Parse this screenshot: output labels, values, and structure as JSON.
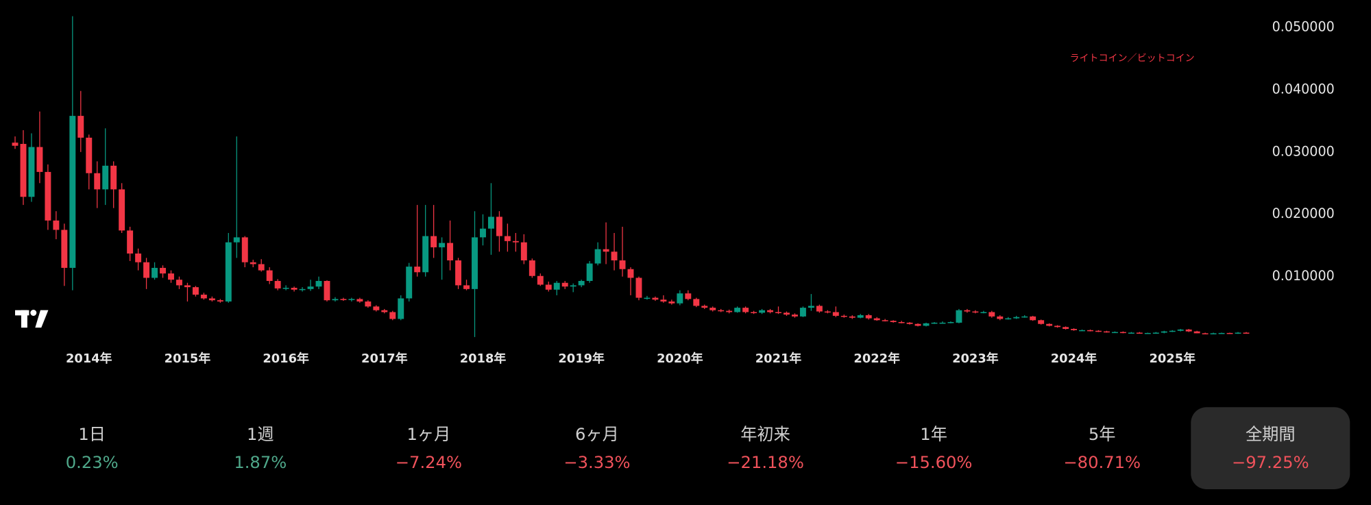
{
  "chart_data": {
    "type": "candlestick",
    "legend": "ライトコイン／ビットコイン",
    "categories": [
      null,
      null,
      null,
      null,
      null,
      null,
      null,
      null,
      null,
      "2014年",
      null,
      null,
      null,
      null,
      null,
      null,
      null,
      null,
      null,
      null,
      null,
      "2015年",
      null,
      null,
      null,
      null,
      null,
      null,
      null,
      null,
      null,
      null,
      null,
      "2016年",
      null,
      null,
      null,
      null,
      null,
      null,
      null,
      null,
      null,
      null,
      null,
      "2017年",
      null,
      null,
      null,
      null,
      null,
      null,
      null,
      null,
      null,
      null,
      null,
      "2018年",
      null,
      null,
      null,
      null,
      null,
      null,
      null,
      null,
      null,
      null,
      null,
      "2019年",
      null,
      null,
      null,
      null,
      null,
      null,
      null,
      null,
      null,
      null,
      null,
      "2020年",
      null,
      null,
      null,
      null,
      null,
      null,
      null,
      null,
      null,
      null,
      null,
      "2021年",
      null,
      null,
      null,
      null,
      null,
      null,
      null,
      null,
      null,
      null,
      null,
      "2022年",
      null,
      null,
      null,
      null,
      null,
      null,
      null,
      null,
      null,
      null,
      null,
      "2023年",
      null,
      null,
      null,
      null,
      null,
      null,
      null,
      null,
      null,
      null,
      null,
      "2024年",
      null,
      null,
      null,
      null,
      null,
      null,
      null,
      null,
      null,
      null,
      null,
      "2025年",
      null,
      null,
      null,
      null,
      null,
      null,
      null,
      null,
      null
    ],
    "ohlc": [
      [
        0.0315,
        0.0325,
        0.0305,
        0.031
      ],
      [
        0.0313,
        0.0335,
        0.0215,
        0.0228
      ],
      [
        0.0228,
        0.033,
        0.022,
        0.0308
      ],
      [
        0.0308,
        0.0365,
        0.025,
        0.0268
      ],
      [
        0.0268,
        0.028,
        0.0175,
        0.019
      ],
      [
        0.019,
        0.0205,
        0.016,
        0.0175
      ],
      [
        0.0175,
        0.0185,
        0.0085,
        0.0114
      ],
      [
        0.0114,
        0.0518,
        0.0078,
        0.0358
      ],
      [
        0.0358,
        0.0398,
        0.03,
        0.0323
      ],
      [
        0.0323,
        0.0328,
        0.024,
        0.0266
      ],
      [
        0.0266,
        0.0285,
        0.021,
        0.024
      ],
      [
        0.024,
        0.0338,
        0.0215,
        0.0278
      ],
      [
        0.0278,
        0.0285,
        0.021,
        0.024
      ],
      [
        0.024,
        0.025,
        0.017,
        0.0174
      ],
      [
        0.0174,
        0.018,
        0.0125,
        0.0137
      ],
      [
        0.0137,
        0.0145,
        0.011,
        0.0123
      ],
      [
        0.0123,
        0.013,
        0.008,
        0.0098
      ],
      [
        0.0098,
        0.0123,
        0.0095,
        0.0114
      ],
      [
        0.0114,
        0.0118,
        0.0098,
        0.0105
      ],
      [
        0.0105,
        0.011,
        0.009,
        0.0095
      ],
      [
        0.0095,
        0.01,
        0.008,
        0.0086
      ],
      [
        0.0086,
        0.009,
        0.006,
        0.0083
      ],
      [
        0.0083,
        0.0085,
        0.0068,
        0.0071
      ],
      [
        0.0071,
        0.0074,
        0.0063,
        0.0065
      ],
      [
        0.0065,
        0.0068,
        0.006,
        0.0062
      ],
      [
        0.0062,
        0.0064,
        0.0058,
        0.006
      ],
      [
        0.006,
        0.017,
        0.0058,
        0.0155
      ],
      [
        0.0155,
        0.0325,
        0.013,
        0.0163
      ],
      [
        0.0163,
        0.0165,
        0.0115,
        0.0123
      ],
      [
        0.0123,
        0.0127,
        0.0115,
        0.012
      ],
      [
        0.012,
        0.0128,
        0.0108,
        0.011
      ],
      [
        0.011,
        0.0115,
        0.0088,
        0.0093
      ],
      [
        0.0093,
        0.0096,
        0.0078,
        0.0081
      ],
      [
        0.0081,
        0.0086,
        0.0078,
        0.0082
      ],
      [
        0.0082,
        0.0084,
        0.0076,
        0.0079
      ],
      [
        0.0079,
        0.0083,
        0.0076,
        0.008
      ],
      [
        0.008,
        0.0095,
        0.0077,
        0.0084
      ],
      [
        0.0084,
        0.01,
        0.008,
        0.0093
      ],
      [
        0.0093,
        0.0094,
        0.006,
        0.0062
      ],
      [
        0.0062,
        0.0067,
        0.006,
        0.0064
      ],
      [
        0.0064,
        0.0066,
        0.0061,
        0.0063
      ],
      [
        0.0063,
        0.0066,
        0.006,
        0.0064
      ],
      [
        0.0064,
        0.0066,
        0.0058,
        0.006
      ],
      [
        0.006,
        0.0062,
        0.005,
        0.0052
      ],
      [
        0.0052,
        0.0054,
        0.0044,
        0.0046
      ],
      [
        0.0046,
        0.0048,
        0.0041,
        0.0043
      ],
      [
        0.0043,
        0.0045,
        0.003,
        0.0032
      ],
      [
        0.0032,
        0.007,
        0.003,
        0.0065
      ],
      [
        0.0065,
        0.0122,
        0.006,
        0.0116
      ],
      [
        0.0116,
        0.0215,
        0.01,
        0.0107
      ],
      [
        0.0107,
        0.0215,
        0.01,
        0.0165
      ],
      [
        0.0165,
        0.0215,
        0.013,
        0.0147
      ],
      [
        0.0147,
        0.0163,
        0.0095,
        0.0154
      ],
      [
        0.0154,
        0.019,
        0.011,
        0.0126
      ],
      [
        0.0126,
        0.013,
        0.008,
        0.0086
      ],
      [
        0.0086,
        0.0095,
        0.0078,
        0.008
      ],
      [
        0.008,
        0.0205,
        0.0003,
        0.0163
      ],
      [
        0.0163,
        0.02,
        0.015,
        0.0177
      ],
      [
        0.0177,
        0.025,
        0.0135,
        0.0196
      ],
      [
        0.0196,
        0.0205,
        0.014,
        0.0165
      ],
      [
        0.0165,
        0.0185,
        0.014,
        0.0157
      ],
      [
        0.0157,
        0.017,
        0.014,
        0.0155
      ],
      [
        0.0155,
        0.0168,
        0.012,
        0.0126
      ],
      [
        0.0126,
        0.0129,
        0.0098,
        0.0101
      ],
      [
        0.0101,
        0.0105,
        0.0085,
        0.0087
      ],
      [
        0.0087,
        0.0092,
        0.0076,
        0.0079
      ],
      [
        0.0079,
        0.0093,
        0.007,
        0.009
      ],
      [
        0.009,
        0.0093,
        0.008,
        0.0084
      ],
      [
        0.0084,
        0.0089,
        0.0075,
        0.0086
      ],
      [
        0.0086,
        0.0095,
        0.0083,
        0.0093
      ],
      [
        0.0093,
        0.0125,
        0.009,
        0.0121
      ],
      [
        0.0121,
        0.0155,
        0.0118,
        0.0144
      ],
      [
        0.0144,
        0.0187,
        0.012,
        0.014
      ],
      [
        0.014,
        0.017,
        0.011,
        0.0126
      ],
      [
        0.0126,
        0.018,
        0.01,
        0.0112
      ],
      [
        0.0112,
        0.0115,
        0.007,
        0.0098
      ],
      [
        0.0098,
        0.01,
        0.0062,
        0.0066
      ],
      [
        0.0066,
        0.0069,
        0.0063,
        0.0066
      ],
      [
        0.0066,
        0.0068,
        0.0061,
        0.0063
      ],
      [
        0.0063,
        0.007,
        0.0058,
        0.006
      ],
      [
        0.006,
        0.0063,
        0.0055,
        0.0057
      ],
      [
        0.0057,
        0.0078,
        0.0054,
        0.0073
      ],
      [
        0.0073,
        0.0078,
        0.0062,
        0.0064
      ],
      [
        0.0064,
        0.0066,
        0.0051,
        0.0053
      ],
      [
        0.0053,
        0.0055,
        0.0048,
        0.005
      ],
      [
        0.005,
        0.0052,
        0.0044,
        0.0046
      ],
      [
        0.0046,
        0.0048,
        0.0043,
        0.0045
      ],
      [
        0.0045,
        0.0047,
        0.0041,
        0.0043
      ],
      [
        0.0043,
        0.0052,
        0.0042,
        0.005
      ],
      [
        0.005,
        0.0052,
        0.0041,
        0.0043
      ],
      [
        0.0043,
        0.0045,
        0.004,
        0.0042
      ],
      [
        0.0042,
        0.0048,
        0.004,
        0.0046
      ],
      [
        0.0046,
        0.0048,
        0.0041,
        0.0043
      ],
      [
        0.0043,
        0.0052,
        0.004,
        0.0042
      ],
      [
        0.0042,
        0.0044,
        0.0037,
        0.0039
      ],
      [
        0.0039,
        0.0041,
        0.0034,
        0.0036
      ],
      [
        0.0036,
        0.0052,
        0.0035,
        0.005
      ],
      [
        0.005,
        0.0072,
        0.0045,
        0.0053
      ],
      [
        0.0053,
        0.0055,
        0.0042,
        0.0044
      ],
      [
        0.0044,
        0.0046,
        0.0041,
        0.0043
      ],
      [
        0.0043,
        0.0052,
        0.0035,
        0.0037
      ],
      [
        0.0037,
        0.0039,
        0.0034,
        0.0036
      ],
      [
        0.0036,
        0.0038,
        0.0032,
        0.0034
      ],
      [
        0.0034,
        0.004,
        0.0033,
        0.0038
      ],
      [
        0.0038,
        0.004,
        0.0031,
        0.0033
      ],
      [
        0.0033,
        0.0035,
        0.0029,
        0.003
      ],
      [
        0.003,
        0.0032,
        0.0028,
        0.0029
      ],
      [
        0.0029,
        0.003,
        0.0026,
        0.0027
      ],
      [
        0.0027,
        0.0029,
        0.0025,
        0.0026
      ],
      [
        0.0026,
        0.0027,
        0.0023,
        0.0024
      ],
      [
        0.0024,
        0.0025,
        0.002,
        0.0021
      ],
      [
        0.0021,
        0.0026,
        0.002,
        0.0025
      ],
      [
        0.0025,
        0.0027,
        0.0024,
        0.0026
      ],
      [
        0.0026,
        0.0028,
        0.0025,
        0.0026
      ],
      [
        0.0026,
        0.0028,
        0.0025,
        0.0027
      ],
      [
        0.0026,
        0.0048,
        0.0025,
        0.0046
      ],
      [
        0.0046,
        0.0048,
        0.0042,
        0.0044
      ],
      [
        0.0044,
        0.0046,
        0.0041,
        0.0043
      ],
      [
        0.0043,
        0.0045,
        0.0041,
        0.0043
      ],
      [
        0.0043,
        0.0045,
        0.0034,
        0.0036
      ],
      [
        0.0036,
        0.0038,
        0.003,
        0.0032
      ],
      [
        0.0032,
        0.0035,
        0.0031,
        0.0033
      ],
      [
        0.0033,
        0.0037,
        0.0032,
        0.0035
      ],
      [
        0.0035,
        0.0038,
        0.0034,
        0.0036
      ],
      [
        0.0036,
        0.0037,
        0.0029,
        0.003
      ],
      [
        0.003,
        0.0031,
        0.0023,
        0.0024
      ],
      [
        0.0024,
        0.0025,
        0.002,
        0.0021
      ],
      [
        0.0021,
        0.0022,
        0.0018,
        0.0019
      ],
      [
        0.0019,
        0.002,
        0.0015,
        0.0016
      ],
      [
        0.0016,
        0.0017,
        0.0013,
        0.0014
      ],
      [
        0.0014,
        0.0015,
        0.0013,
        0.0014
      ],
      [
        0.0014,
        0.0015,
        0.0012,
        0.0013
      ],
      [
        0.0013,
        0.0014,
        0.0011,
        0.0012
      ],
      [
        0.0012,
        0.0013,
        0.001,
        0.0011
      ],
      [
        0.0011,
        0.0012,
        0.001,
        0.0011
      ],
      [
        0.0011,
        0.0012,
        0.0009,
        0.001
      ],
      [
        0.001,
        0.0011,
        0.0009,
        0.001
      ],
      [
        0.001,
        0.0011,
        0.0009,
        0.00095
      ],
      [
        0.00095,
        0.001,
        0.0009,
        0.00095
      ],
      [
        0.00095,
        0.0011,
        0.0009,
        0.001
      ],
      [
        0.001,
        0.0013,
        0.0009,
        0.0012
      ],
      [
        0.0012,
        0.0014,
        0.0011,
        0.0013
      ],
      [
        0.0013,
        0.0016,
        0.0012,
        0.0015
      ],
      [
        0.0015,
        0.0016,
        0.0011,
        0.0012
      ],
      [
        0.0012,
        0.0013,
        0.0009,
        0.0009
      ],
      [
        0.0009,
        0.001,
        0.0008,
        0.00085
      ],
      [
        0.00085,
        0.001,
        0.0008,
        0.0009
      ],
      [
        0.0009,
        0.001,
        0.0008,
        0.00095
      ],
      [
        0.00095,
        0.001,
        0.0008,
        0.0009
      ],
      [
        0.0009,
        0.0011,
        0.0008,
        0.001
      ],
      [
        0.001,
        0.0011,
        0.0009,
        0.00095
      ]
    ],
    "up_color": "#089981",
    "down_color": "#f23645",
    "legend_color": "#f23645",
    "ylim": [
      -0.001,
      0.0544
    ],
    "yticks": [
      {
        "value": 0.01,
        "label": "0.010000"
      },
      {
        "value": 0.02,
        "label": "0.020000"
      },
      {
        "value": 0.03,
        "label": "0.030000"
      },
      {
        "value": 0.04,
        "label": "0.040000"
      },
      {
        "value": 0.05,
        "label": "0.050000"
      }
    ]
  },
  "periods": {
    "items": [
      {
        "label": "1日",
        "change": "0.23%"
      },
      {
        "label": "1週",
        "change": "1.87%"
      },
      {
        "label": "1ヶ月",
        "change": "−7.24%"
      },
      {
        "label": "6ヶ月",
        "change": "−3.33%"
      },
      {
        "label": "年初来",
        "change": "−21.18%"
      },
      {
        "label": "1年",
        "change": "−15.60%"
      },
      {
        "label": "5年",
        "change": "−80.71%"
      },
      {
        "label": "全期間",
        "change": "−97.25%"
      }
    ],
    "selected": 7,
    "up_color": "#4fa88a",
    "down_color": "#f0525b"
  }
}
